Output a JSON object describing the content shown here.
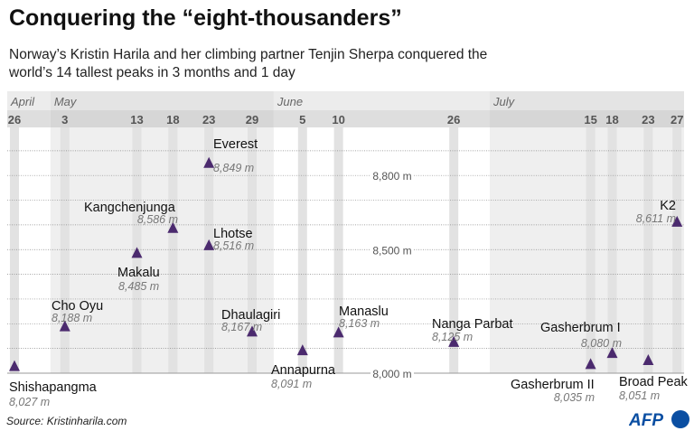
{
  "title": "Conquering the “eight-thousanders”",
  "subtitle": "Norway’s Kristin Harila and her climbing partner Tenjin Sherpa conquered the world’s 14 tallest peaks in 3 months and 1 day",
  "source": "Source: Kristinharila.com",
  "logo": "AFP",
  "colors": {
    "marker": "#4b2a6e",
    "band": "#efefef",
    "stripe": "#e2e2e2",
    "logo": "#0a4ea2"
  },
  "chart_data": {
    "type": "scatter",
    "title": "Conquering the “eight-thousanders”",
    "x_axis": {
      "type": "date",
      "range": [
        "2022-04-26",
        "2022-07-27"
      ],
      "months": [
        {
          "label": "April",
          "start": "2022-04-26"
        },
        {
          "label": "May",
          "start": "2022-05-01"
        },
        {
          "label": "June",
          "start": "2022-06-01"
        },
        {
          "label": "July",
          "start": "2022-07-01"
        }
      ],
      "tick_labels": [
        "26",
        "3",
        "13",
        "18",
        "23",
        "29",
        "5",
        "10",
        "26",
        "15",
        "18",
        "23",
        "27"
      ]
    },
    "y_axis": {
      "unit": "m",
      "range": [
        8000,
        8900
      ],
      "tick_labels": [
        {
          "value": 8000,
          "label": "8,000 m"
        },
        {
          "value": 8500,
          "label": "8,500 m"
        },
        {
          "value": 8800,
          "label": "8,800 m"
        }
      ],
      "gridlines_every": 100,
      "grid": true
    },
    "points": [
      {
        "name": "Shishapangma",
        "date": "2022-04-26",
        "height": 8027,
        "height_label": "8,027 m"
      },
      {
        "name": "Cho Oyu",
        "date": "2022-05-03",
        "height": 8188,
        "height_label": "8,188 m"
      },
      {
        "name": "Makalu",
        "date": "2022-05-13",
        "height": 8485,
        "height_label": "8,485 m"
      },
      {
        "name": "Kangchenjunga",
        "date": "2022-05-18",
        "height": 8586,
        "height_label": "8,586 m"
      },
      {
        "name": "Everest",
        "date": "2022-05-23",
        "height": 8849,
        "height_label": "8,849 m"
      },
      {
        "name": "Lhotse",
        "date": "2022-05-23",
        "height": 8516,
        "height_label": "8,516 m"
      },
      {
        "name": "Dhaulagiri",
        "date": "2022-05-29",
        "height": 8167,
        "height_label": "8,167 m"
      },
      {
        "name": "Annapurna",
        "date": "2022-06-05",
        "height": 8091,
        "height_label": "8,091 m"
      },
      {
        "name": "Manaslu",
        "date": "2022-06-10",
        "height": 8163,
        "height_label": "8,163 m"
      },
      {
        "name": "Nanga Parbat",
        "date": "2022-06-26",
        "height": 8125,
        "height_label": "8,125 m"
      },
      {
        "name": "Gasherbrum II",
        "date": "2022-07-15",
        "height": 8035,
        "height_label": "8,035 m"
      },
      {
        "name": "Gasherbrum I",
        "date": "2022-07-18",
        "height": 8080,
        "height_label": "8,080 m"
      },
      {
        "name": "Broad Peak",
        "date": "2022-07-23",
        "height": 8051,
        "height_label": "8,051 m"
      },
      {
        "name": "K2",
        "date": "2022-07-27",
        "height": 8611,
        "height_label": "8,611 m"
      }
    ]
  }
}
